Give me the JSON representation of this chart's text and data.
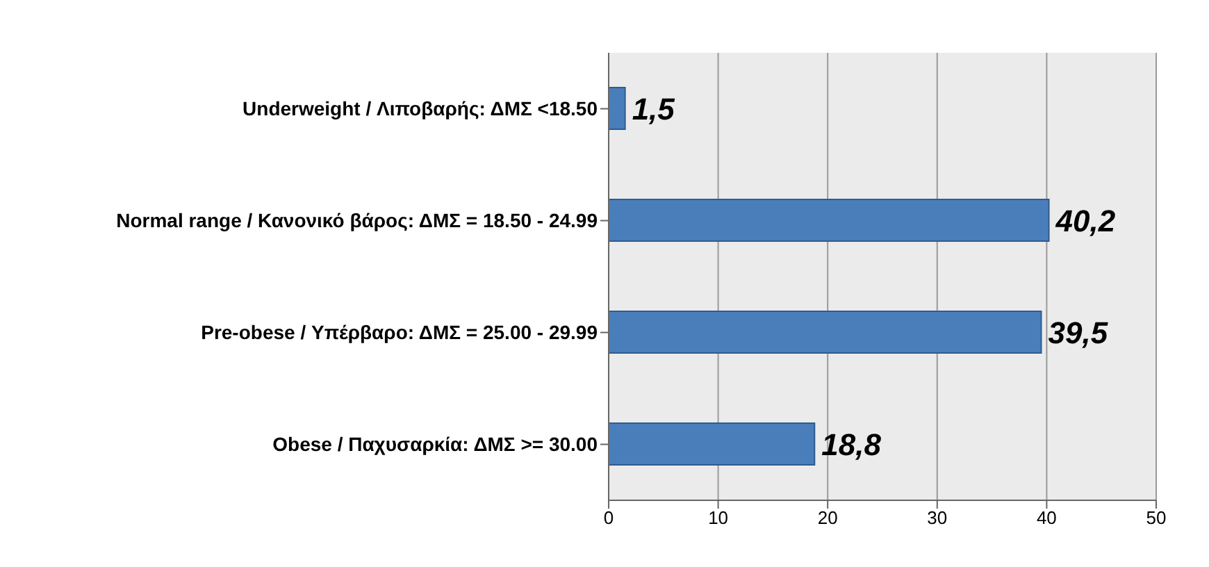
{
  "chart_data": {
    "type": "bar",
    "orientation": "horizontal",
    "categories": [
      "Underweight / Λιποβαρής: ΔΜΣ <18.50",
      "Normal range / Κανονικό βάρος: ΔΜΣ = 18.50 - 24.99",
      "Pre-obese / Υπέρβαρο: ΔΜΣ = 25.00 - 29.99",
      "Obese / Παχυσαρκία: ΔΜΣ >= 30.00"
    ],
    "values": [
      1.5,
      40.2,
      39.5,
      18.8
    ],
    "value_labels": [
      "1,5",
      "40,2",
      "39,5",
      "18,8"
    ],
    "color": "#4a7ebb",
    "xlim": [
      0,
      50
    ],
    "xticks": [
      0,
      10,
      20,
      30,
      40,
      50
    ],
    "grid": "x"
  }
}
